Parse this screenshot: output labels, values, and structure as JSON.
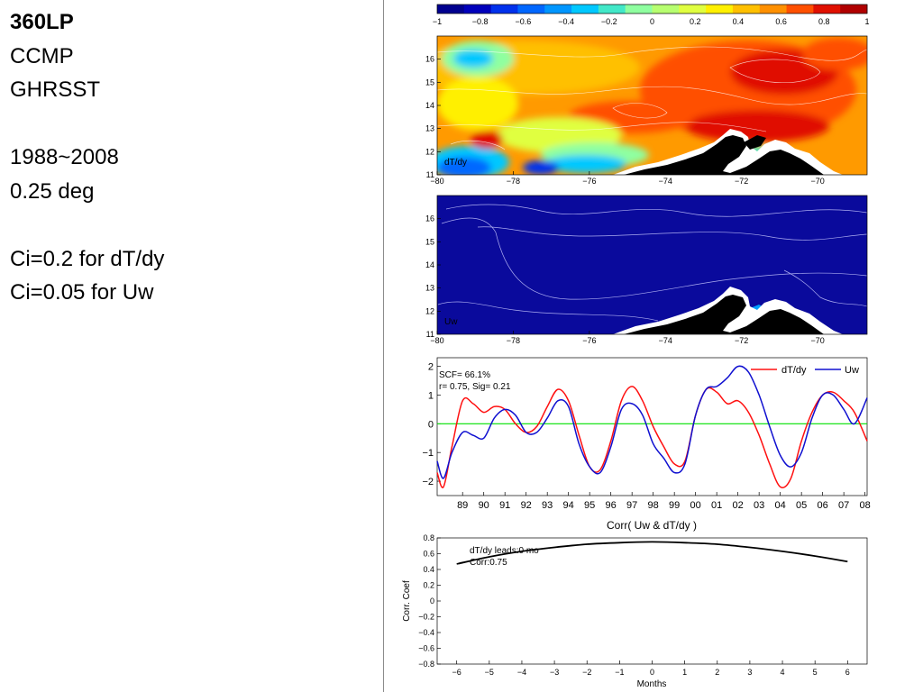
{
  "left_panel": {
    "title": "360LP",
    "lines": [
      "CCMP",
      "GHRSST",
      "1988~2008",
      "0.25 deg",
      "Ci=0.2 for dT/dy",
      "Ci=0.05 for Uw"
    ]
  },
  "colors": {
    "colorbar": [
      "#00008f",
      "#0000bb",
      "#0031ec",
      "#0067ff",
      "#0096ff",
      "#00c8ff",
      "#42e8c8",
      "#8fffa0",
      "#b7ff70",
      "#e0ff40",
      "#fff000",
      "#ffc000",
      "#ff9000",
      "#ff5000",
      "#e01000",
      "#b00000"
    ],
    "land": "#000000",
    "ocean_blue": "#0a0a9c",
    "dTdy_line": "#ff1010",
    "Uw_line": "#1010d0",
    "zero_line": "#00e000"
  },
  "chart_data": [
    {
      "type": "colorbar",
      "ticks": [
        "-1",
        "-0.8",
        "-0.6",
        "-0.4",
        "-0.2",
        "0",
        "0.2",
        "0.4",
        "0.6",
        "0.8",
        "1"
      ],
      "range": [
        -1,
        1
      ]
    },
    {
      "type": "heatmap",
      "label": "dT/dy",
      "x_ticks": [
        "-80",
        "-78",
        "-76",
        "-74",
        "-72",
        "-70"
      ],
      "y_ticks": [
        "11",
        "12",
        "13",
        "14",
        "15",
        "16"
      ],
      "xlim": [
        -80,
        -68.7
      ],
      "ylim": [
        11,
        17
      ]
    },
    {
      "type": "heatmap",
      "label": "Uw",
      "x_ticks": [
        "-80",
        "-78",
        "-76",
        "-74",
        "-72",
        "-70"
      ],
      "y_ticks": [
        "11",
        "12",
        "13",
        "14",
        "15",
        "16"
      ],
      "xlim": [
        -80,
        -68.7
      ],
      "ylim": [
        11,
        17
      ]
    },
    {
      "type": "line",
      "annotations": [
        "SCF= 66.1%",
        "r= 0.75, Sig= 0.21"
      ],
      "x_ticks": [
        "89",
        "90",
        "91",
        "92",
        "93",
        "94",
        "95",
        "96",
        "97",
        "98",
        "99",
        "00",
        "01",
        "02",
        "03",
        "04",
        "05",
        "06",
        "07",
        "08"
      ],
      "y_ticks": [
        "2",
        "1",
        "0",
        "-1",
        "-2"
      ],
      "xlim": [
        1988.3,
        2008.6
      ],
      "ylim": [
        -2.5,
        2.3
      ],
      "x": [
        1988.3,
        1988.6,
        1989.0,
        1989.5,
        1990.0,
        1990.5,
        1991.0,
        1991.5,
        1992.0,
        1992.5,
        1993.0,
        1993.5,
        1994.0,
        1994.5,
        1995.0,
        1995.5,
        1996.0,
        1996.5,
        1997.0,
        1997.5,
        1998.0,
        1998.5,
        1999.0,
        1999.5,
        2000.0,
        2000.5,
        2001.0,
        2001.5,
        2002.0,
        2002.5,
        2003.0,
        2003.5,
        2004.0,
        2004.5,
        2005.0,
        2005.5,
        2006.0,
        2006.5,
        2007.0,
        2007.5,
        2008.0,
        2008.6
      ],
      "series": [
        {
          "name": "dT/dy",
          "values": [
            -1.7,
            -2.2,
            -0.8,
            0.8,
            0.7,
            0.4,
            0.6,
            0.5,
            0.0,
            -0.3,
            -0.1,
            0.6,
            1.2,
            0.8,
            -0.4,
            -1.5,
            -1.6,
            -0.6,
            0.8,
            1.3,
            0.8,
            -0.1,
            -0.8,
            -1.4,
            -1.3,
            0.3,
            1.2,
            1.1,
            0.7,
            0.8,
            0.4,
            -0.4,
            -1.4,
            -2.2,
            -1.9,
            -0.6,
            0.4,
            1.0,
            1.1,
            0.8,
            0.4,
            -0.6
          ]
        },
        {
          "name": "Uw",
          "values": [
            -1.3,
            -1.9,
            -1.0,
            -0.3,
            -0.4,
            -0.5,
            0.2,
            0.5,
            0.3,
            -0.3,
            -0.3,
            0.2,
            0.8,
            0.6,
            -0.7,
            -1.5,
            -1.7,
            -0.8,
            0.5,
            0.7,
            0.3,
            -0.7,
            -1.2,
            -1.7,
            -1.4,
            0.3,
            1.2,
            1.3,
            1.6,
            2.0,
            1.8,
            1.0,
            -0.1,
            -1.1,
            -1.5,
            -1.0,
            0.2,
            1.0,
            1.0,
            0.5,
            0.0,
            0.9
          ]
        }
      ]
    },
    {
      "type": "line",
      "title": "Corr( Uw & dT/dy )",
      "xlabel": "Months",
      "ylabel": "Corr. Coef",
      "annotations": [
        "dT/dy leads:0 mo",
        "Corr:0.75"
      ],
      "x_ticks": [
        "-6",
        "-5",
        "-4",
        "-3",
        "-2",
        "-1",
        "0",
        "1",
        "2",
        "3",
        "4",
        "5",
        "6"
      ],
      "y_ticks": [
        "0.8",
        "0.6",
        "0.4",
        "0.2",
        "0",
        "-0.2",
        "-0.4",
        "-0.6",
        "-0.8"
      ],
      "xlim": [
        -6.6,
        6.6
      ],
      "ylim": [
        -0.8,
        0.8
      ],
      "x": [
        -6,
        -5,
        -4,
        -3,
        -2,
        -1,
        0,
        1,
        2,
        3,
        4,
        5,
        6
      ],
      "values": [
        0.47,
        0.56,
        0.63,
        0.68,
        0.72,
        0.74,
        0.75,
        0.74,
        0.72,
        0.68,
        0.63,
        0.57,
        0.5
      ]
    }
  ]
}
